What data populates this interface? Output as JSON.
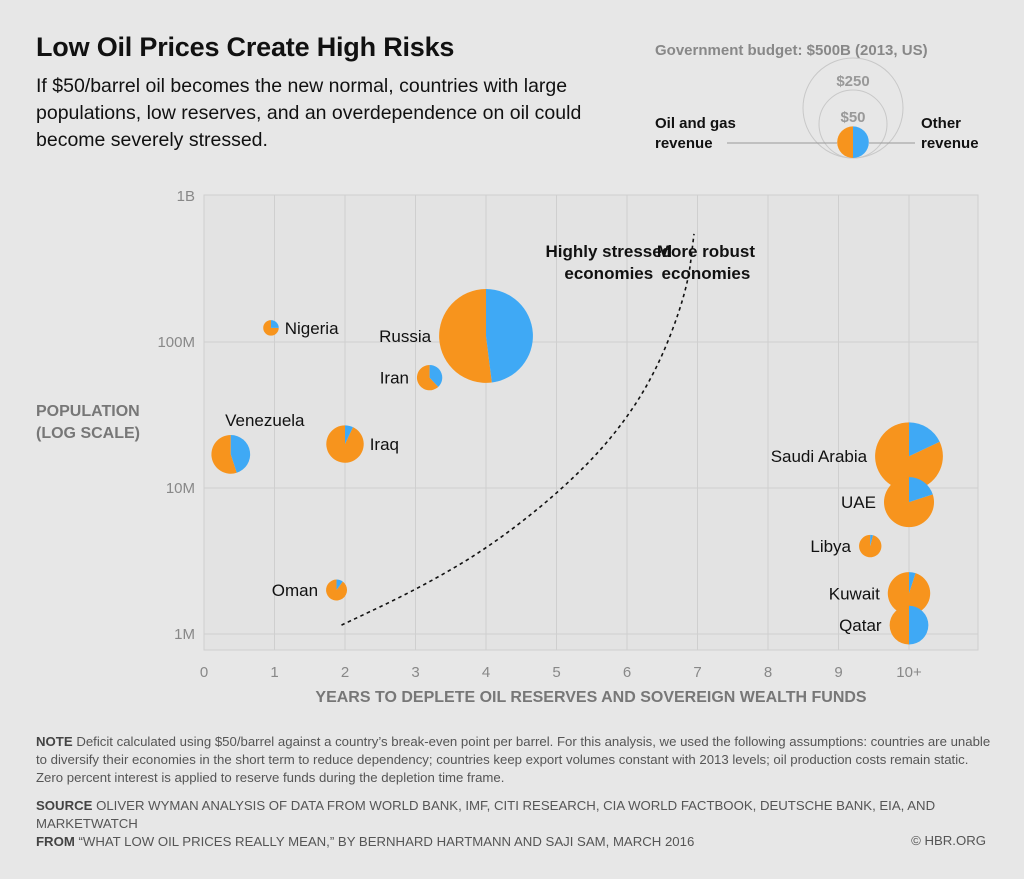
{
  "header": {
    "title": "Low Oil Prices Create High Risks",
    "subtitle": "If $50/barrel oil becomes the new normal, countries with large populations, low reserves, and an overdependence on oil could become severely stressed."
  },
  "legend": {
    "title": "Government budget: $500B (2013, US)",
    "size_labels": [
      "$250",
      "$50"
    ],
    "left_label_line1": "Oil and gas",
    "left_label_line2": "revenue",
    "right_label_line1": "Other",
    "right_label_line2": "revenue"
  },
  "chart_data": {
    "type": "scatter",
    "subtype": "pie-bubble",
    "title": "Low Oil Prices Create High Risks",
    "xlabel": "YEARS TO DEPLETE OIL RESERVES AND SOVEREIGN WEALTH FUNDS",
    "ylabel_line1": "POPULATION",
    "ylabel_line2": "(LOG SCALE)",
    "x_range": [
      0,
      11
    ],
    "y_scale": "log",
    "y_range": [
      1000000,
      1000000000
    ],
    "x_ticks": [
      {
        "value": 0,
        "label": "0"
      },
      {
        "value": 1,
        "label": "1"
      },
      {
        "value": 2,
        "label": "2"
      },
      {
        "value": 3,
        "label": "3"
      },
      {
        "value": 4,
        "label": "4"
      },
      {
        "value": 5,
        "label": "5"
      },
      {
        "value": 6,
        "label": "6"
      },
      {
        "value": 7,
        "label": "7"
      },
      {
        "value": 8,
        "label": "8"
      },
      {
        "value": 9,
        "label": "9"
      },
      {
        "value": 10,
        "label": "10+"
      }
    ],
    "y_ticks": [
      {
        "value": 1000000,
        "label": "1M"
      },
      {
        "value": 10000000,
        "label": "10M"
      },
      {
        "value": 100000000,
        "label": "100M"
      },
      {
        "value": 1000000000,
        "label": "1B"
      }
    ],
    "legend_reference_budget_busd": 500,
    "series_colors": {
      "oil_and_gas": "#f7941d",
      "other": "#3fa9f5"
    },
    "gridline_color": "#cfcfcf",
    "divider": {
      "label_left": [
        "Highly stressed",
        "economies"
      ],
      "label_right": [
        "More robust",
        "economies"
      ],
      "points": [
        [
          1.95,
          1150000
        ],
        [
          3.0,
          2000000
        ],
        [
          4.0,
          3800000
        ],
        [
          5.0,
          9000000
        ],
        [
          5.8,
          22000000
        ],
        [
          6.4,
          60000000
        ],
        [
          6.85,
          220000000
        ],
        [
          6.95,
          550000000
        ]
      ]
    },
    "countries": [
      {
        "name": "Nigeria",
        "years": 0.95,
        "population": 125000000,
        "budget_busd": 12,
        "oil_share": 0.75,
        "label_side": "right"
      },
      {
        "name": "Russia",
        "years": 4.0,
        "population": 110000000,
        "budget_busd": 440,
        "oil_share": 0.52,
        "label_side": "left"
      },
      {
        "name": "Iran",
        "years": 3.2,
        "population": 57000000,
        "budget_busd": 32,
        "oil_share": 0.62,
        "label_side": "left"
      },
      {
        "name": "Venezuela",
        "years": 0.38,
        "population": 17000000,
        "budget_busd": 75,
        "oil_share": 0.55,
        "label_side": "above"
      },
      {
        "name": "Iraq",
        "years": 2.0,
        "population": 20000000,
        "budget_busd": 70,
        "oil_share": 0.93,
        "label_side": "right"
      },
      {
        "name": "Oman",
        "years": 1.88,
        "population": 2000000,
        "budget_busd": 22,
        "oil_share": 0.9,
        "label_side": "left"
      },
      {
        "name": "Saudi Arabia",
        "years": 10.0,
        "population": 16500000,
        "budget_busd": 230,
        "oil_share": 0.82,
        "label_side": "left"
      },
      {
        "name": "UAE",
        "years": 10.0,
        "population": 8000000,
        "budget_busd": 125,
        "oil_share": 0.8,
        "label_side": "left"
      },
      {
        "name": "Libya",
        "years": 9.45,
        "population": 4000000,
        "budget_busd": 25,
        "oil_share": 0.96,
        "label_side": "left"
      },
      {
        "name": "Kuwait",
        "years": 10.0,
        "population": 1900000,
        "budget_busd": 90,
        "oil_share": 0.95,
        "label_side": "left"
      },
      {
        "name": "Qatar",
        "years": 10.0,
        "population": 1150000,
        "budget_busd": 75,
        "oil_share": 0.5,
        "label_side": "left"
      }
    ]
  },
  "footer": {
    "note_label": "NOTE",
    "note_text": "Deficit calculated using $50/barrel against a country’s break-even point per barrel. For this analysis, we used the following assumptions: countries are unable to diversify their economies in the short term to reduce dependency; countries keep export volumes constant with 2013 levels; oil production costs remain static. Zero percent interest is applied to reserve funds during the depletion time frame.",
    "source_label": "SOURCE",
    "source_text": "Oliver Wyman analysis of data from World Bank, IMF, Citi Research, CIA World Factbook, Deutsche Bank, EIA, and MarketWatch",
    "from_label": "FROM",
    "from_text": "“What Low Oil Prices Really Mean,” by Bernhard Hartmann and Saji Sam, March 2016",
    "credit": "© HBR.ORG"
  }
}
